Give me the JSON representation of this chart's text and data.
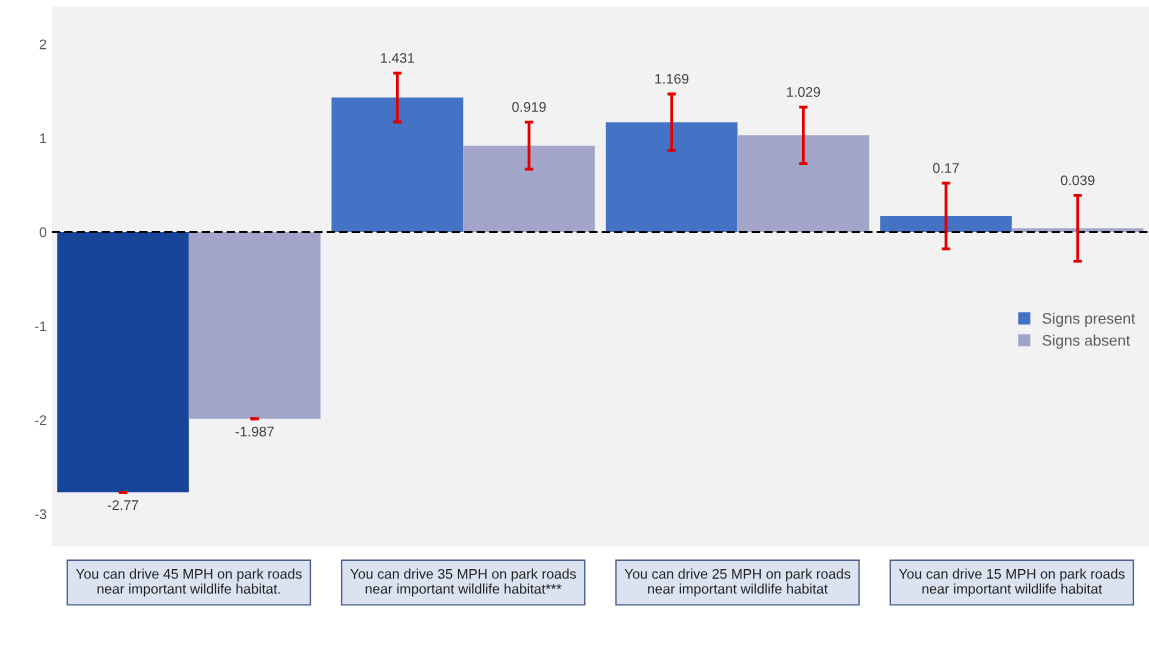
{
  "chart_data": {
    "type": "bar",
    "categories": [
      "You can drive 45 MPH on park roads\nnear important wildlife habitat.",
      "You can drive 35 MPH on park roads\nnear important wildlife habitat***",
      "You can drive 25 MPH on park roads\nnear important wildlife habitat",
      "You can drive 15 MPH on park roads\nnear important wildlife habitat"
    ],
    "series": [
      {
        "name": "Signs present",
        "color": "#4472c4",
        "colors": [
          "#174599",
          "#4472c4",
          "#4472c4",
          "#4472c4"
        ],
        "values": [
          -2.77,
          1.431,
          1.169,
          0.17
        ],
        "errors": [
          0,
          0.26,
          0.3,
          0.35
        ]
      },
      {
        "name": "Signs absent",
        "color": "#a2a5c8",
        "values": [
          -1.987,
          0.919,
          1.029,
          0.039
        ],
        "errors": [
          0,
          0.25,
          0.3,
          0.35
        ]
      }
    ],
    "ylim": [
      -3.35,
      2.4
    ],
    "yticks": [
      -3,
      -2,
      -1,
      0,
      1,
      2
    ],
    "data_labels": true,
    "legend": "right",
    "grid": false,
    "ref_lines": [
      {
        "axis": "y",
        "value": 0,
        "color": "#000000",
        "line_style": "dashed"
      }
    ]
  }
}
